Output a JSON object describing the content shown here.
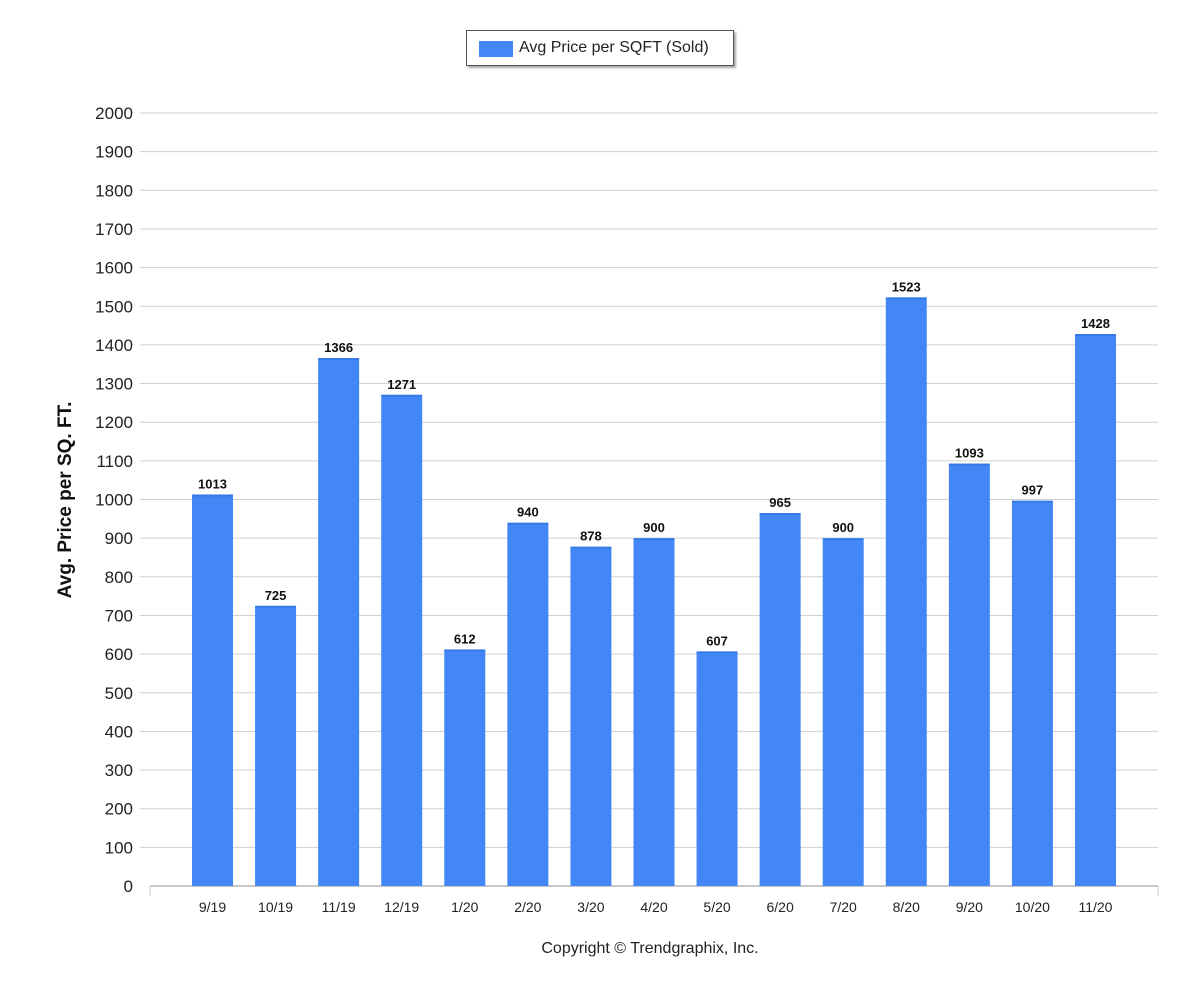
{
  "chart_data": {
    "type": "bar",
    "categories": [
      "9/19",
      "10/19",
      "11/19",
      "12/19",
      "1/20",
      "2/20",
      "3/20",
      "4/20",
      "5/20",
      "6/20",
      "7/20",
      "8/20",
      "9/20",
      "10/20",
      "11/20"
    ],
    "series": [
      {
        "name": "Avg Price per SQFT (Sold)",
        "values": [
          1013,
          725,
          1366,
          1271,
          612,
          940,
          878,
          900,
          607,
          965,
          900,
          1523,
          1093,
          997,
          1428
        ],
        "color": "#4287f5"
      }
    ],
    "ylabel": "Avg. Price per SQ. FT.",
    "xlabel": "",
    "ylim": [
      0,
      2000
    ],
    "yticks": [
      0,
      100,
      200,
      300,
      400,
      500,
      600,
      700,
      800,
      900,
      1000,
      1100,
      1200,
      1300,
      1400,
      1500,
      1600,
      1700,
      1800,
      1900,
      2000
    ],
    "grid": true,
    "legend_position": "top-center",
    "data_labels": true
  },
  "footer": {
    "copyright": "Copyright © Trendgraphix, Inc."
  }
}
